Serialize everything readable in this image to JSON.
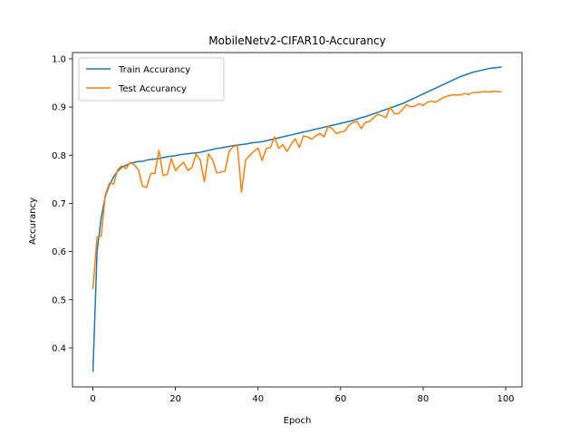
{
  "chart_data": {
    "type": "line",
    "title": "MobileNetv2-CIFAR10-Accurancy",
    "xlabel": "Epoch",
    "ylabel": "Accurancy",
    "xlim": [
      -4.95,
      103.95
    ],
    "ylim": [
      0.319,
      1.013
    ],
    "xticks": [
      0,
      20,
      40,
      60,
      80,
      100
    ],
    "yticks": [
      0.4,
      0.5,
      0.6,
      0.7,
      0.8,
      0.9,
      1.0
    ],
    "ytick_labels": [
      "0.4",
      "0.5",
      "0.6",
      "0.7",
      "0.8",
      "0.9",
      "1.0"
    ],
    "grid": false,
    "legend_position": "top-left",
    "series": [
      {
        "name": "Train Accurancy",
        "color": "#1f77b4",
        "values": [
          0.35,
          0.6,
          0.67,
          0.715,
          0.738,
          0.755,
          0.767,
          0.775,
          0.779,
          0.783,
          0.785,
          0.787,
          0.787,
          0.79,
          0.791,
          0.792,
          0.793,
          0.795,
          0.797,
          0.798,
          0.799,
          0.801,
          0.802,
          0.803,
          0.804,
          0.805,
          0.806,
          0.808,
          0.81,
          0.812,
          0.814,
          0.815,
          0.817,
          0.818,
          0.82,
          0.821,
          0.822,
          0.823,
          0.825,
          0.826,
          0.827,
          0.828,
          0.83,
          0.832,
          0.834,
          0.836,
          0.838,
          0.84,
          0.842,
          0.844,
          0.846,
          0.848,
          0.85,
          0.852,
          0.854,
          0.856,
          0.858,
          0.86,
          0.862,
          0.864,
          0.866,
          0.868,
          0.87,
          0.872,
          0.875,
          0.878,
          0.88,
          0.883,
          0.886,
          0.889,
          0.892,
          0.895,
          0.898,
          0.901,
          0.904,
          0.907,
          0.911,
          0.915,
          0.919,
          0.923,
          0.927,
          0.931,
          0.935,
          0.939,
          0.943,
          0.947,
          0.951,
          0.955,
          0.959,
          0.963,
          0.966,
          0.969,
          0.972,
          0.974,
          0.976,
          0.978,
          0.98,
          0.981,
          0.982,
          0.983
        ]
      },
      {
        "name": "Test Accurancy",
        "color": "#ff7f0e",
        "values": [
          0.522,
          0.63,
          0.632,
          0.718,
          0.742,
          0.74,
          0.77,
          0.778,
          0.772,
          0.785,
          0.78,
          0.77,
          0.736,
          0.733,
          0.762,
          0.762,
          0.81,
          0.758,
          0.76,
          0.793,
          0.768,
          0.778,
          0.785,
          0.768,
          0.775,
          0.802,
          0.79,
          0.745,
          0.803,
          0.79,
          0.763,
          0.765,
          0.767,
          0.808,
          0.818,
          0.82,
          0.723,
          0.79,
          0.8,
          0.808,
          0.815,
          0.789,
          0.814,
          0.816,
          0.838,
          0.814,
          0.822,
          0.808,
          0.822,
          0.834,
          0.816,
          0.84,
          0.838,
          0.833,
          0.84,
          0.845,
          0.838,
          0.86,
          0.855,
          0.845,
          0.848,
          0.85,
          0.862,
          0.868,
          0.87,
          0.855,
          0.868,
          0.87,
          0.878,
          0.885,
          0.882,
          0.878,
          0.9,
          0.886,
          0.886,
          0.895,
          0.905,
          0.9,
          0.902,
          0.907,
          0.903,
          0.91,
          0.912,
          0.91,
          0.915,
          0.92,
          0.923,
          0.925,
          0.925,
          0.925,
          0.928,
          0.926,
          0.93,
          0.93,
          0.931,
          0.932,
          0.931,
          0.933,
          0.932,
          0.932
        ]
      }
    ]
  }
}
